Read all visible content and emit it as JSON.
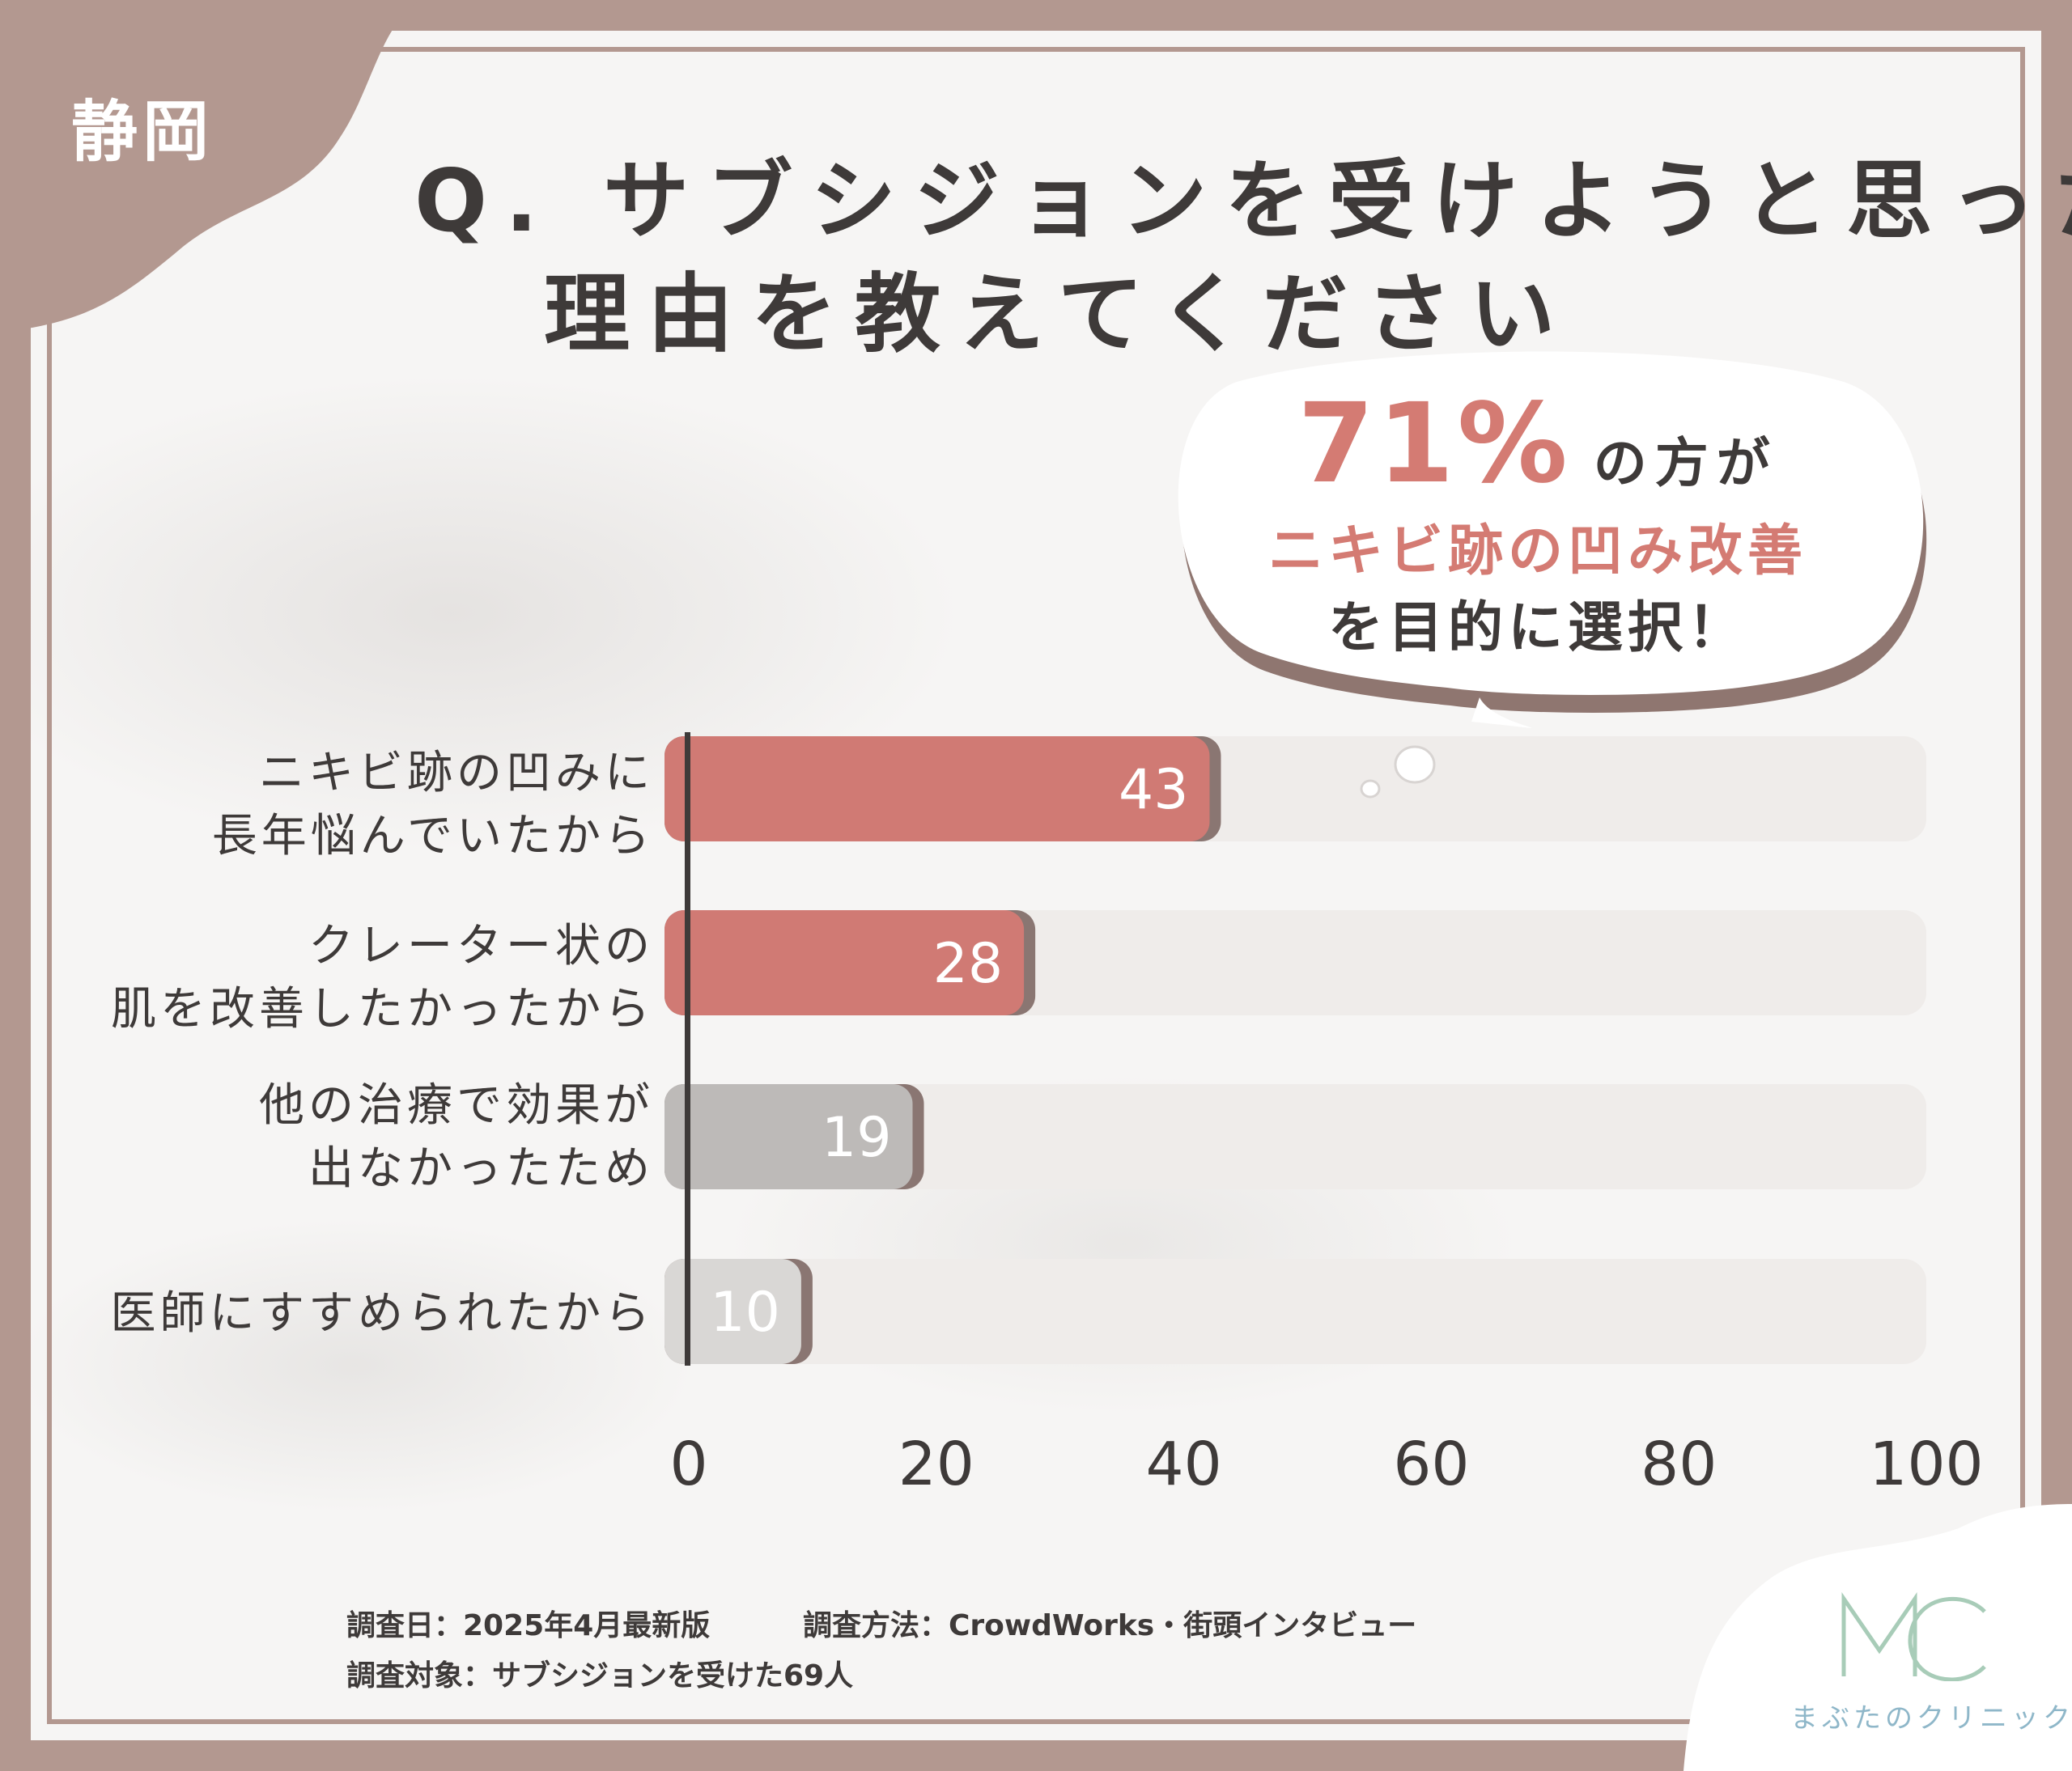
{
  "region": "静岡",
  "question": {
    "line1": "Q. サブシジョンを受けようと思った",
    "line2": "理由を教えてください"
  },
  "callout": {
    "percent": "71%",
    "suffix": "の方が",
    "highlight": "ニキビ跡の凹み改善",
    "line3": "を目的に選択！"
  },
  "chart_data": {
    "type": "bar",
    "orientation": "horizontal",
    "categories": [
      [
        "ニキビ跡の凹みに",
        "長年悩んでいたから"
      ],
      [
        "クレーター状の",
        "肌を改善したかったから"
      ],
      [
        "他の治療で効果が",
        "出なかったため"
      ],
      [
        "医師にすすめられたから"
      ]
    ],
    "values": [
      43,
      28,
      19,
      10
    ],
    "value_labels": [
      "43",
      "28",
      "19",
      "10"
    ],
    "bar_colors": [
      "#d07a74",
      "#d07a74",
      "#bdbab8",
      "#d9d7d5"
    ],
    "track_color": "#efecea",
    "xlim": [
      0,
      100
    ],
    "xticks": [
      "0",
      "20",
      "40",
      "60",
      "80",
      "100"
    ],
    "grid": false
  },
  "footer": {
    "date": "調査日：2025年4月最新版",
    "method": "調査方法：CrowdWorks・街頭インタビュー",
    "subject": "調査対象：サブシジョンを受けた69人"
  },
  "logo": {
    "mark": "MC",
    "name": "まぶたのクリニック"
  },
  "colors": {
    "frame": "#b39890",
    "accent": "#d47b73",
    "text": "#3e3a39",
    "logo": "#8fb7c9"
  }
}
